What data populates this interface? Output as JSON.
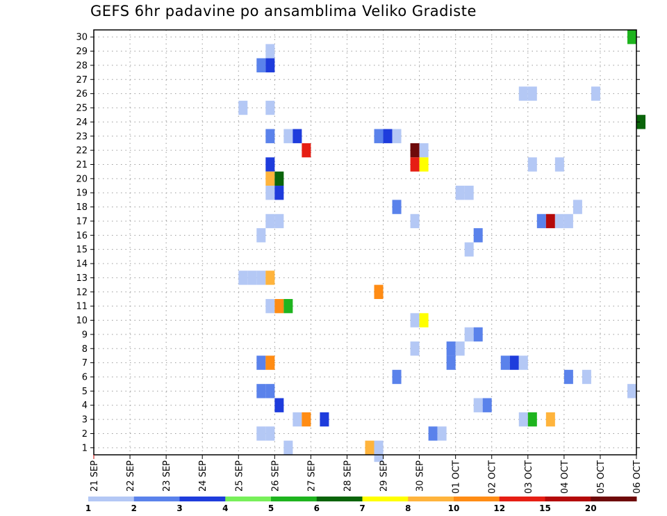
{
  "chart_data": {
    "type": "heatmap",
    "title": "GEFS 6hr padavine po ansamblima Veliko Gradiste",
    "x_ticks": [
      "21 SEP",
      "22 SEP",
      "23 SEP",
      "24 SEP",
      "25 SEP",
      "26 SEP",
      "27 SEP",
      "28 SEP",
      "29 SEP",
      "30 SEP",
      "01 OCT",
      "02 OCT",
      "03 OCT",
      "04 OCT",
      "05 OCT",
      "06 OCT"
    ],
    "y_ticks": [
      1,
      2,
      3,
      4,
      5,
      6,
      7,
      8,
      9,
      10,
      11,
      12,
      13,
      14,
      15,
      16,
      17,
      18,
      19,
      20,
      21,
      22,
      23,
      24,
      25,
      26,
      27,
      28,
      29,
      30
    ],
    "xlim_days": [
      0,
      15
    ],
    "ylim": [
      0.5,
      30.5
    ],
    "grid": true,
    "legend": {
      "placement": "bottom",
      "labels": [
        "1",
        "2",
        "3",
        "4",
        "5",
        "6",
        "7",
        "8",
        "10",
        "12",
        "15",
        "20"
      ],
      "colors": [
        "#b4c8f5",
        "#5a82eb",
        "#1e3cdc",
        "#78f05a",
        "#1eb41e",
        "#0a640a",
        "#ffff00",
        "#ffb43c",
        "#ff8c14",
        "#e61e14",
        "#b40a0a",
        "#6e0a0a"
      ]
    },
    "cells": [
      {
        "member": 30,
        "day": 14.75,
        "value": 5.5
      },
      {
        "member": 29,
        "day": 4.75,
        "value": 1.5
      },
      {
        "member": 28,
        "day": 4.5,
        "value": 2.5
      },
      {
        "member": 28,
        "day": 4.75,
        "value": 3.5
      },
      {
        "member": 26,
        "day": 11.75,
        "value": 1.5
      },
      {
        "member": 26,
        "day": 12.0,
        "value": 1.5
      },
      {
        "member": 26,
        "day": 13.75,
        "value": 1.5
      },
      {
        "member": 25,
        "day": 4.0,
        "value": 1.5
      },
      {
        "member": 25,
        "day": 4.75,
        "value": 1.5
      },
      {
        "member": 24,
        "day": 15.0,
        "value": 6.5
      },
      {
        "member": 23,
        "day": 4.75,
        "value": 2.5
      },
      {
        "member": 23,
        "day": 5.25,
        "value": 1.5
      },
      {
        "member": 23,
        "day": 5.5,
        "value": 3.5
      },
      {
        "member": 23,
        "day": 7.75,
        "value": 2.5
      },
      {
        "member": 23,
        "day": 8.0,
        "value": 3.5
      },
      {
        "member": 23,
        "day": 8.25,
        "value": 1.5
      },
      {
        "member": 22,
        "day": 5.75,
        "value": 13.0
      },
      {
        "member": 22,
        "day": 8.75,
        "value": 25.0
      },
      {
        "member": 22,
        "day": 9.0,
        "value": 1.5
      },
      {
        "member": 21,
        "day": 4.75,
        "value": 3.5
      },
      {
        "member": 21,
        "day": 8.75,
        "value": 13.0
      },
      {
        "member": 21,
        "day": 9.0,
        "value": 7.5
      },
      {
        "member": 21,
        "day": 12.0,
        "value": 1.5
      },
      {
        "member": 21,
        "day": 12.75,
        "value": 1.5
      },
      {
        "member": 20,
        "day": 4.75,
        "value": 8.0
      },
      {
        "member": 20,
        "day": 5.0,
        "value": 6.5
      },
      {
        "member": 19,
        "day": 4.75,
        "value": 1.5
      },
      {
        "member": 19,
        "day": 5.0,
        "value": 3.5
      },
      {
        "member": 19,
        "day": 10.0,
        "value": 1.5
      },
      {
        "member": 19,
        "day": 10.25,
        "value": 1.5
      },
      {
        "member": 18,
        "day": 8.25,
        "value": 2.5
      },
      {
        "member": 18,
        "day": 13.25,
        "value": 1.5
      },
      {
        "member": 17,
        "day": 4.75,
        "value": 1.5
      },
      {
        "member": 17,
        "day": 5.0,
        "value": 1.5
      },
      {
        "member": 17,
        "day": 8.75,
        "value": 1.5
      },
      {
        "member": 17,
        "day": 12.25,
        "value": 2.5
      },
      {
        "member": 17,
        "day": 12.5,
        "value": 18.0
      },
      {
        "member": 17,
        "day": 12.75,
        "value": 1.5
      },
      {
        "member": 17,
        "day": 13.0,
        "value": 1.5
      },
      {
        "member": 16,
        "day": 4.5,
        "value": 1.5
      },
      {
        "member": 16,
        "day": 10.5,
        "value": 2.5
      },
      {
        "member": 15,
        "day": 10.25,
        "value": 1.5
      },
      {
        "member": 13,
        "day": 4.0,
        "value": 1.5
      },
      {
        "member": 13,
        "day": 4.25,
        "value": 1.5
      },
      {
        "member": 13,
        "day": 4.5,
        "value": 1.5
      },
      {
        "member": 13,
        "day": 4.75,
        "value": 8.0
      },
      {
        "member": 12,
        "day": 7.75,
        "value": 11.0
      },
      {
        "member": 11,
        "day": 4.75,
        "value": 1.5
      },
      {
        "member": 11,
        "day": 5.0,
        "value": 11.0
      },
      {
        "member": 11,
        "day": 5.25,
        "value": 5.5
      },
      {
        "member": 10,
        "day": 8.75,
        "value": 1.5
      },
      {
        "member": 10,
        "day": 9.0,
        "value": 7.5
      },
      {
        "member": 9,
        "day": 10.25,
        "value": 1.5
      },
      {
        "member": 9,
        "day": 10.5,
        "value": 2.5
      },
      {
        "member": 8,
        "day": 8.75,
        "value": 1.5
      },
      {
        "member": 8,
        "day": 9.75,
        "value": 2.5
      },
      {
        "member": 8,
        "day": 10.0,
        "value": 1.5
      },
      {
        "member": 7,
        "day": 4.5,
        "value": 2.5
      },
      {
        "member": 7,
        "day": 4.75,
        "value": 11.0
      },
      {
        "member": 7,
        "day": 9.75,
        "value": 2.5
      },
      {
        "member": 7,
        "day": 11.25,
        "value": 2.5
      },
      {
        "member": 7,
        "day": 11.5,
        "value": 3.5
      },
      {
        "member": 7,
        "day": 11.75,
        "value": 1.5
      },
      {
        "member": 6,
        "day": 8.25,
        "value": 2.5
      },
      {
        "member": 6,
        "day": 13.0,
        "value": 2.5
      },
      {
        "member": 6,
        "day": 13.5,
        "value": 1.5
      },
      {
        "member": 5,
        "day": 4.5,
        "value": 2.5
      },
      {
        "member": 5,
        "day": 4.75,
        "value": 2.5
      },
      {
        "member": 5,
        "day": 14.75,
        "value": 1.5
      },
      {
        "member": 4,
        "day": 5.0,
        "value": 3.5
      },
      {
        "member": 4,
        "day": 10.5,
        "value": 1.5
      },
      {
        "member": 4,
        "day": 10.75,
        "value": 2.5
      },
      {
        "member": 3,
        "day": 5.5,
        "value": 1.5
      },
      {
        "member": 3,
        "day": 5.75,
        "value": 11.0
      },
      {
        "member": 3,
        "day": 6.25,
        "value": 3.5
      },
      {
        "member": 3,
        "day": 11.75,
        "value": 1.5
      },
      {
        "member": 3,
        "day": 12.0,
        "value": 5.5
      },
      {
        "member": 3,
        "day": 12.5,
        "value": 8.0
      },
      {
        "member": 2,
        "day": 4.5,
        "value": 1.5
      },
      {
        "member": 2,
        "day": 4.75,
        "value": 1.5
      },
      {
        "member": 2,
        "day": 9.25,
        "value": 2.5
      },
      {
        "member": 2,
        "day": 9.5,
        "value": 1.5
      },
      {
        "member": 1,
        "day": 5.25,
        "value": 1.5
      },
      {
        "member": 1,
        "day": 7.5,
        "value": 8.0
      },
      {
        "member": 1,
        "day": 7.75,
        "value": 1.5
      },
      {
        "member": 0.5,
        "day": 7.75,
        "value": 1.5
      }
    ]
  }
}
